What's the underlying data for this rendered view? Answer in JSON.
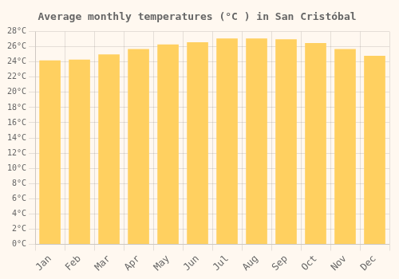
{
  "chart_data": {
    "type": "bar",
    "title": "Average monthly temperatures (°C ) in San Cristóbal",
    "categories": [
      "Jan",
      "Feb",
      "Mar",
      "Apr",
      "May",
      "Jun",
      "Jul",
      "Aug",
      "Sep",
      "Oct",
      "Nov",
      "Dec"
    ],
    "values": [
      24.2,
      24.3,
      25.0,
      25.7,
      26.3,
      26.6,
      27.1,
      27.1,
      27.0,
      26.5,
      25.7,
      24.8
    ],
    "color": "#FFD060",
    "ylim": [
      0,
      28
    ],
    "yticks": [
      {
        "value": 0,
        "label": "0°C"
      },
      {
        "value": 2,
        "label": "2°C"
      },
      {
        "value": 4,
        "label": "4°C"
      },
      {
        "value": 6,
        "label": "6°C"
      },
      {
        "value": 8,
        "label": "8°C"
      },
      {
        "value": 10,
        "label": "10°C"
      },
      {
        "value": 12,
        "label": "12°C"
      },
      {
        "value": 14,
        "label": "14°C"
      },
      {
        "value": 16,
        "label": "16°C"
      },
      {
        "value": 18,
        "label": "18°C"
      },
      {
        "value": 20,
        "label": "20°C"
      },
      {
        "value": 22,
        "label": "22°C"
      },
      {
        "value": 24,
        "label": "24°C"
      },
      {
        "value": 26,
        "label": "26°C"
      },
      {
        "value": 28,
        "label": "28°C"
      }
    ],
    "grid": true
  }
}
